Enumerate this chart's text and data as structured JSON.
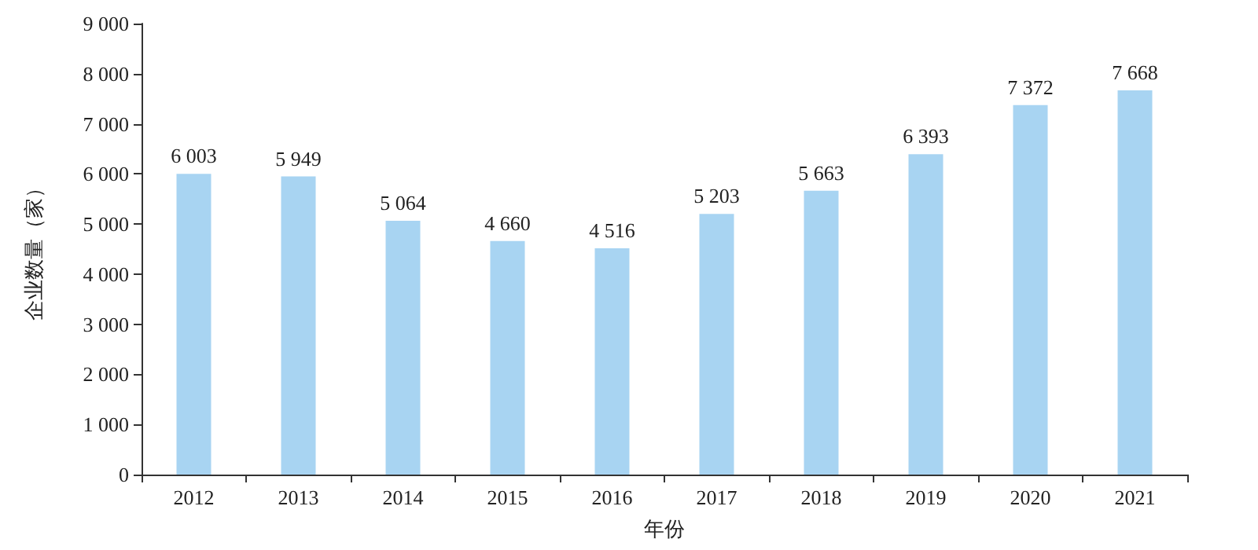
{
  "chart_data": {
    "type": "bar",
    "xlabel": "年份",
    "ylabel": "企业数量（家）",
    "categories": [
      "2012",
      "2013",
      "2014",
      "2015",
      "2016",
      "2017",
      "2018",
      "2019",
      "2020",
      "2021"
    ],
    "values": [
      6003,
      5949,
      5064,
      4660,
      4516,
      5203,
      5663,
      6393,
      7372,
      7668
    ],
    "value_labels": [
      "6 003",
      "5 949",
      "5 064",
      "4 660",
      "4 516",
      "5 203",
      "5 663",
      "6 393",
      "7 372",
      "7 668"
    ],
    "color": "#a8d4f2",
    "ylim": [
      0,
      9000
    ],
    "yticks": [
      0,
      {
        "value": 1000,
        "label": "1 000"
      },
      {
        "value": 2000,
        "label": "2 000"
      },
      {
        "value": 3000,
        "label": "3 000"
      },
      {
        "value": 4000,
        "label": "4 000"
      },
      {
        "value": 5000,
        "label": "5 000"
      },
      {
        "value": 6000,
        "label": "6 000"
      },
      {
        "value": 7000,
        "label": "7 000"
      },
      {
        "value": 8000,
        "label": "8 000"
      },
      {
        "value": 9000,
        "label": "9 000"
      }
    ],
    "grid": false
  }
}
